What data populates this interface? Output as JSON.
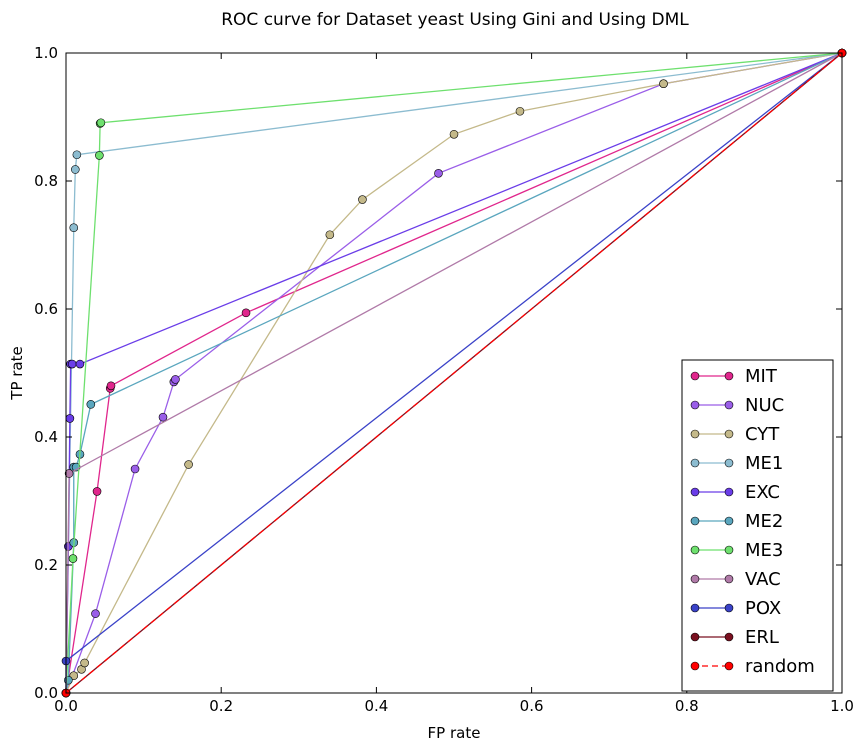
{
  "chart_data": {
    "type": "line",
    "title": "ROC curve for Dataset yeast Using Gini and Using DML",
    "xlabel": "FP rate",
    "ylabel": "TP rate",
    "xlim": [
      0,
      1
    ],
    "ylim": [
      0,
      1
    ],
    "xticks": [
      "0.0",
      "0.2",
      "0.4",
      "0.6",
      "0.8",
      "1.0"
    ],
    "yticks": [
      "0.0",
      "0.2",
      "0.4",
      "0.6",
      "0.8",
      "1.0"
    ],
    "grid": false,
    "legend_position": "lower-right",
    "series": [
      {
        "name": "MIT",
        "color": "#e0268c",
        "dashed": false,
        "points": [
          [
            0,
            0
          ],
          [
            0.04,
            0.315
          ],
          [
            0.057,
            0.476
          ],
          [
            0.058,
            0.48
          ],
          [
            0.232,
            0.594
          ],
          [
            1,
            1
          ]
        ]
      },
      {
        "name": "NUC",
        "color": "#9a5ee8",
        "dashed": false,
        "points": [
          [
            0,
            0
          ],
          [
            0.038,
            0.124
          ],
          [
            0.089,
            0.35
          ],
          [
            0.125,
            0.431
          ],
          [
            0.139,
            0.486
          ],
          [
            0.141,
            0.49
          ],
          [
            0.48,
            0.812
          ],
          [
            0.77,
            0.952
          ],
          [
            1,
            1
          ]
        ]
      },
      {
        "name": "CYT",
        "color": "#c4b98a",
        "dashed": false,
        "points": [
          [
            0,
            0
          ],
          [
            0.01,
            0.027
          ],
          [
            0.02,
            0.037
          ],
          [
            0.024,
            0.047
          ],
          [
            0.158,
            0.357
          ],
          [
            0.34,
            0.716
          ],
          [
            0.382,
            0.771
          ],
          [
            0.5,
            0.873
          ],
          [
            0.585,
            0.909
          ],
          [
            0.77,
            0.952
          ],
          [
            1,
            1
          ]
        ]
      },
      {
        "name": "ME1",
        "color": "#8cbcd0",
        "dashed": false,
        "points": [
          [
            0,
            0
          ],
          [
            0.01,
            0.727
          ],
          [
            0.012,
            0.818
          ],
          [
            0.014,
            0.841
          ],
          [
            1,
            1
          ]
        ]
      },
      {
        "name": "EXC",
        "color": "#6a3de8",
        "dashed": false,
        "points": [
          [
            0,
            0
          ],
          [
            0.003,
            0.229
          ],
          [
            0.005,
            0.429
          ],
          [
            0.006,
            0.514
          ],
          [
            0.008,
            0.514
          ],
          [
            0.018,
            0.514
          ],
          [
            1,
            1
          ]
        ]
      },
      {
        "name": "ME2",
        "color": "#5aa6be",
        "dashed": false,
        "points": [
          [
            0,
            0
          ],
          [
            0.003,
            0.02
          ],
          [
            0.01,
            0.235
          ],
          [
            0.01,
            0.353
          ],
          [
            0.013,
            0.353
          ],
          [
            0.018,
            0.373
          ],
          [
            0.032,
            0.451
          ],
          [
            1,
            1
          ]
        ]
      },
      {
        "name": "ME3",
        "color": "#6ee06e",
        "dashed": false,
        "points": [
          [
            0,
            0
          ],
          [
            0.009,
            0.21
          ],
          [
            0.043,
            0.84
          ],
          [
            0.044,
            0.89
          ],
          [
            0.045,
            0.891
          ],
          [
            1,
            1
          ]
        ]
      },
      {
        "name": "VAC",
        "color": "#b07aa8",
        "dashed": false,
        "points": [
          [
            0,
            0
          ],
          [
            0.004,
            0.343
          ],
          [
            1,
            1
          ]
        ]
      },
      {
        "name": "POX",
        "color": "#3a42c8",
        "dashed": false,
        "points": [
          [
            0,
            0
          ],
          [
            0,
            0.05
          ],
          [
            1,
            1
          ]
        ]
      },
      {
        "name": "ERL",
        "color": "#7a1020",
        "dashed": false,
        "points": [
          [
            0,
            0
          ],
          [
            1,
            1
          ]
        ]
      },
      {
        "name": "random",
        "color": "#ff0000",
        "dashed": true,
        "points": [
          [
            0,
            0
          ],
          [
            1,
            1
          ]
        ]
      }
    ]
  }
}
